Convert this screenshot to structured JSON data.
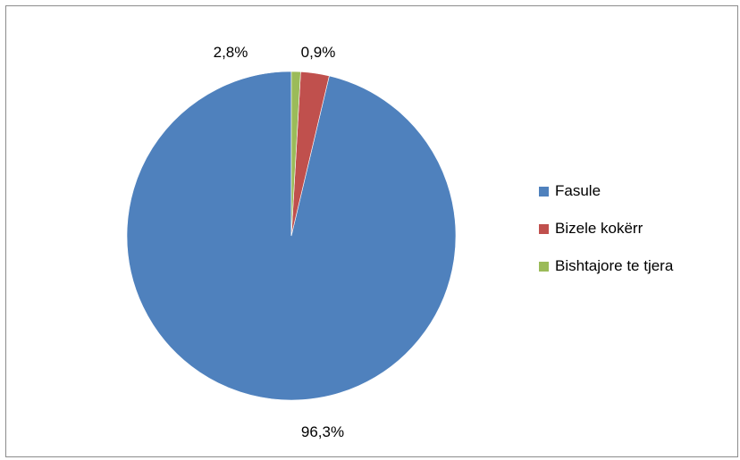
{
  "chart_data": {
    "type": "pie",
    "title": "",
    "slices": [
      {
        "label": "Fasule",
        "value": 96.3,
        "display": "96,3%",
        "color": "#4F81BD"
      },
      {
        "label": "Bizele kokërr",
        "value": 2.8,
        "display": "2,8%",
        "color": "#C0504D"
      },
      {
        "label": "Bishtajore te tjera",
        "value": 0.9,
        "display": "0,9%",
        "color": "#9BBB59"
      }
    ],
    "legend_position": "right",
    "start_angle": "top, counterclockwise",
    "data_labels": "outside"
  }
}
